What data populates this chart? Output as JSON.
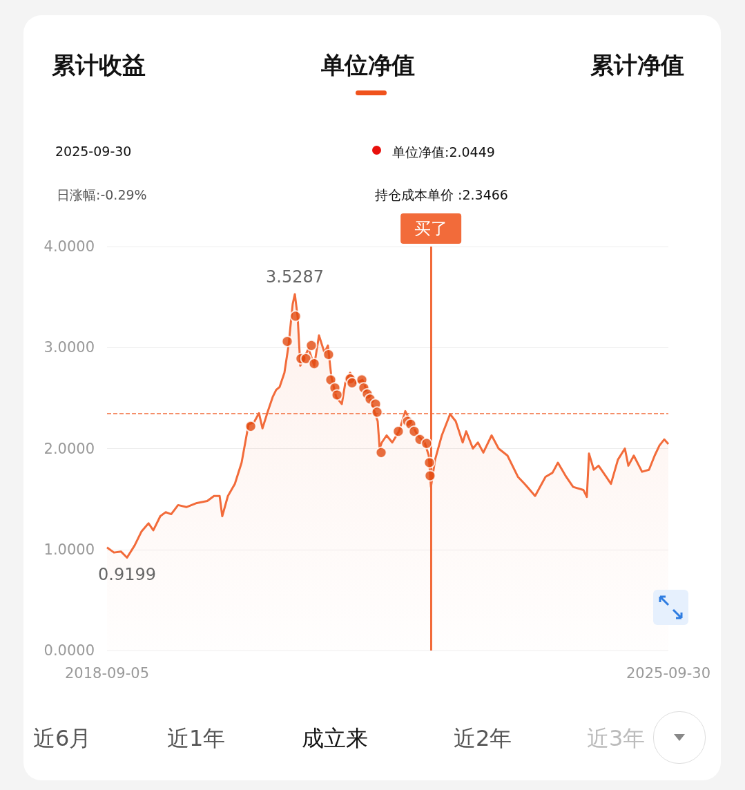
{
  "chart_data": {
    "type": "area",
    "grid": "y",
    "marker": "none",
    "line_style": "solid",
    "ylim": [
      0,
      4
    ],
    "yticks": [
      {
        "value": 0,
        "label": "0.0000"
      },
      {
        "value": 1,
        "label": "1.0000"
      },
      {
        "value": 2,
        "label": "2.0000"
      },
      {
        "value": 3,
        "label": "3.0000"
      },
      {
        "value": 4,
        "label": "4.0000"
      }
    ],
    "xlim": [
      "2018-09-05",
      "2025-09-30"
    ],
    "xticks": [
      "2018-09-05",
      "2025-09-30"
    ],
    "ref_lines": [
      {
        "axis": "y",
        "value": 2.3466,
        "label": null,
        "color": "#f26b3a",
        "line_style": "dashed"
      },
      {
        "axis": "x",
        "value": "2022-10-04",
        "label": "买了",
        "color": "#f26b3a",
        "line_style": "solid"
      }
    ],
    "annotations": [
      "累计收益",
      "单位净值",
      "累计净值",
      "2025-09-30",
      "单位净值:2.0449",
      "日涨幅:-0.29%",
      "持仓成本单价 :2.3466",
      {
        "text": "3.5287",
        "x": "2021-01-16",
        "y": 3.5287
      },
      {
        "text": "0.9199",
        "x": "2018-12-06",
        "y": 0.9199
      },
      "近6月",
      "近1年",
      "成立来",
      "近2年",
      "近3年"
    ],
    "series": [
      {
        "color": "#f26b3a",
        "x": [
          "2018-09-05",
          "2018-10-07",
          "2018-11-08",
          "2018-12-06",
          "2019-01-10",
          "2019-02-11",
          "2019-03-15",
          "2019-04-06",
          "2019-05-08",
          "2019-06-02",
          "2019-06-27",
          "2019-07-29",
          "2019-09-05",
          "2019-10-23",
          "2019-12-10",
          "2020-01-10",
          "2020-02-05",
          "2020-02-17",
          "2020-03-14",
          "2020-04-15",
          "2020-05-16",
          "2020-06-17",
          "2020-07-12",
          "2020-08-04",
          "2020-08-20",
          "2020-09-14",
          "2020-10-06",
          "2020-10-22",
          "2020-11-07",
          "2020-11-29",
          "2020-12-18",
          "2021-01-06",
          "2021-01-16",
          "2021-01-29",
          "2021-02-10",
          "2021-02-26",
          "2021-03-20",
          "2021-04-15",
          "2021-05-07",
          "2021-06-01",
          "2021-06-17",
          "2021-07-03",
          "2021-07-25",
          "2021-08-20",
          "2021-09-05",
          "2021-09-27",
          "2021-10-22",
          "2021-11-23",
          "2021-12-19",
          "2022-01-10",
          "2022-02-01",
          "2022-02-10",
          "2022-02-20",
          "2022-03-14",
          "2022-04-09",
          "2022-05-10",
          "2022-06-08",
          "2022-07-03",
          "2022-08-04",
          "2022-09-05",
          "2022-09-24",
          "2022-10-04",
          "2022-10-23",
          "2022-11-23",
          "2022-12-31",
          "2023-01-26",
          "2023-02-27",
          "2023-03-15",
          "2023-04-15",
          "2023-05-08",
          "2023-06-02",
          "2023-07-10",
          "2023-08-11",
          "2023-09-21",
          "2023-11-08",
          "2023-12-09",
          "2024-01-26",
          "2024-03-14",
          "2024-04-15",
          "2024-05-10",
          "2024-06-17",
          "2024-07-19",
          "2024-09-04",
          "2024-09-20",
          "2024-09-30",
          "2024-10-22",
          "2024-11-13",
          "2024-12-18",
          "2025-01-09",
          "2025-02-10",
          "2025-03-14",
          "2025-03-30",
          "2025-04-24",
          "2025-06-01",
          "2025-07-03",
          "2025-07-29",
          "2025-08-20",
          "2025-09-11",
          "2025-09-30"
        ],
        "values": [
          1.02,
          0.97,
          0.98,
          0.9199,
          1.04,
          1.18,
          1.26,
          1.19,
          1.33,
          1.37,
          1.35,
          1.44,
          1.42,
          1.46,
          1.48,
          1.53,
          1.53,
          1.33,
          1.53,
          1.65,
          1.86,
          2.24,
          2.26,
          2.35,
          2.2,
          2.37,
          2.51,
          2.58,
          2.61,
          2.75,
          3.02,
          3.43,
          3.5287,
          3.3,
          2.82,
          2.89,
          2.99,
          2.82,
          3.12,
          2.95,
          3.02,
          2.71,
          2.51,
          2.44,
          2.65,
          2.75,
          2.65,
          2.68,
          2.54,
          2.41,
          2.27,
          2.0,
          2.06,
          2.13,
          2.06,
          2.17,
          2.37,
          2.26,
          2.13,
          2.06,
          1.93,
          1.62,
          1.89,
          2.13,
          2.34,
          2.27,
          2.06,
          2.17,
          2.0,
          2.06,
          1.96,
          2.13,
          2.0,
          1.93,
          1.72,
          1.65,
          1.53,
          1.72,
          1.76,
          1.86,
          1.72,
          1.62,
          1.59,
          1.52,
          1.95,
          1.79,
          1.83,
          1.72,
          1.65,
          1.89,
          2.0,
          1.83,
          1.93,
          1.77,
          1.79,
          1.93,
          2.03,
          2.09,
          2.0449
        ]
      },
      {
        "type": "scatter",
        "color": "#e24a0f",
        "marker": "circle",
        "x": [
          "2020-06-27",
          "2020-12-12",
          "2021-01-19",
          "2021-02-13",
          "2021-03-08",
          "2021-04-02",
          "2021-04-15",
          "2021-06-20",
          "2021-06-30",
          "2021-07-19",
          "2021-07-29",
          "2021-09-27",
          "2021-10-06",
          "2021-11-20",
          "2021-11-29",
          "2021-12-15",
          "2021-12-28",
          "2022-01-22",
          "2022-01-29",
          "2022-02-17",
          "2022-05-07",
          "2022-06-18",
          "2022-07-03",
          "2022-07-19",
          "2022-08-14",
          "2022-09-14",
          "2022-09-27",
          "2022-09-30"
        ],
        "values": [
          2.22,
          3.06,
          3.31,
          2.89,
          2.89,
          3.02,
          2.84,
          2.93,
          2.68,
          2.6,
          2.53,
          2.69,
          2.65,
          2.68,
          2.6,
          2.54,
          2.49,
          2.44,
          2.36,
          1.96,
          2.17,
          2.27,
          2.24,
          2.17,
          2.09,
          2.05,
          1.86,
          1.73
        ]
      }
    ]
  }
}
